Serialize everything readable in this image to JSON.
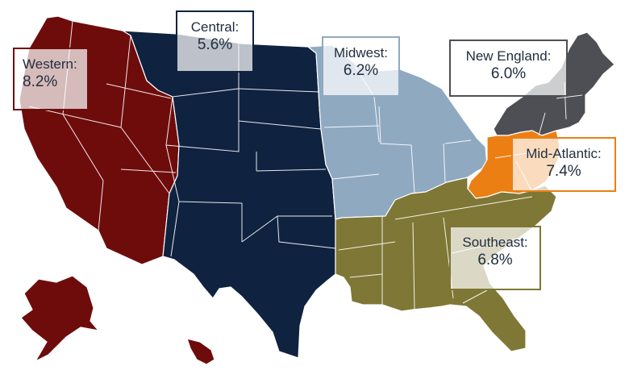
{
  "colors": {
    "western": "#6e0c0c",
    "central": "#0f2240",
    "midwest": "#8fa9c1",
    "new_england": "#4d4f55",
    "mid_atlantic": "#ec7f13",
    "southeast": "#7f7735"
  },
  "regions": [
    {
      "key": "western",
      "name": "Western:",
      "value": "8.2%"
    },
    {
      "key": "central",
      "name": "Central:",
      "value": "5.6%"
    },
    {
      "key": "midwest",
      "name": "Midwest:",
      "value": "6.2%"
    },
    {
      "key": "new_england",
      "name": "New England:",
      "value": "6.0%"
    },
    {
      "key": "mid_atlantic",
      "name": "Mid-Atlantic:",
      "value": "7.4%"
    },
    {
      "key": "southeast",
      "name": "Southeast:",
      "value": "6.8%"
    }
  ]
}
